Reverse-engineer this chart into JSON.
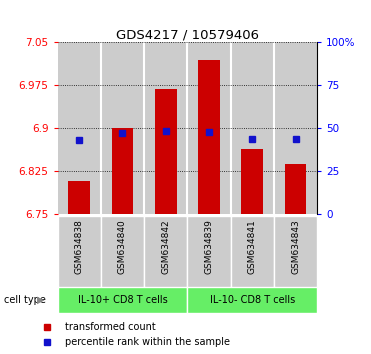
{
  "title": "GDS4217 / 10579406",
  "samples": [
    "GSM634838",
    "GSM634840",
    "GSM634842",
    "GSM634839",
    "GSM634841",
    "GSM634843"
  ],
  "bar_values": [
    6.808,
    6.9,
    6.968,
    7.02,
    6.864,
    6.838
  ],
  "blue_values": [
    6.88,
    6.892,
    6.895,
    6.893,
    6.882,
    6.882
  ],
  "ylim_left": [
    6.75,
    7.05
  ],
  "ylim_right": [
    0,
    100
  ],
  "yticks_left": [
    6.75,
    6.825,
    6.9,
    6.975,
    7.05
  ],
  "yticks_right": [
    0,
    25,
    50,
    75,
    100
  ],
  "ytick_labels_left": [
    "6.75",
    "6.825",
    "6.9",
    "6.975",
    "7.05"
  ],
  "ytick_labels_right": [
    "0",
    "25",
    "50",
    "75",
    "100%"
  ],
  "bar_color": "#cc0000",
  "blue_color": "#1111cc",
  "group1_label": "IL-10+ CD8 T cells",
  "group2_label": "IL-10- CD8 T cells",
  "group1_indices": [
    0,
    1,
    2
  ],
  "group2_indices": [
    3,
    4,
    5
  ],
  "group_bg_color": "#66ee66",
  "sample_bg_color": "#cccccc",
  "legend_red_label": "transformed count",
  "legend_blue_label": "percentile rank within the sample",
  "cell_type_label": "cell type",
  "bar_bottom": 6.75,
  "blue_marker_size": 4,
  "bar_width": 0.5
}
